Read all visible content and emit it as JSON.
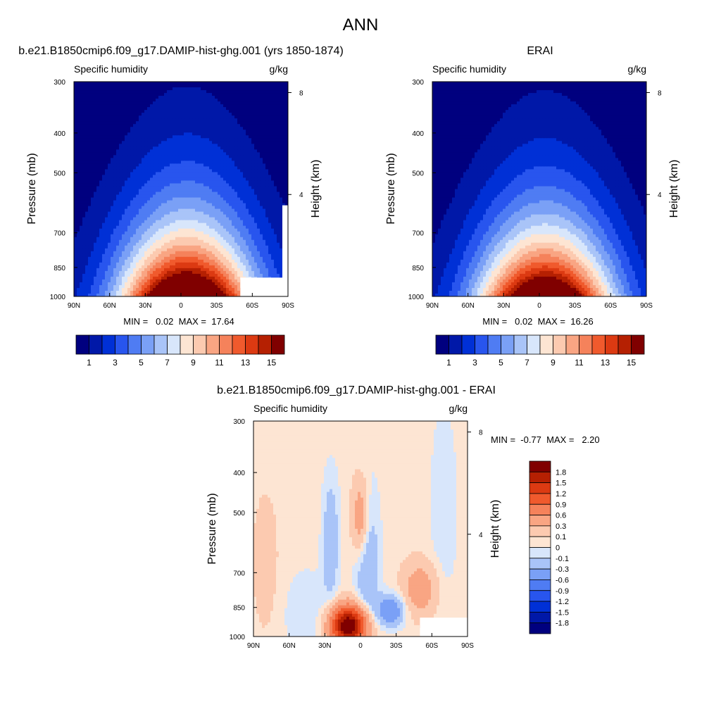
{
  "figure": {
    "title": "ANN"
  },
  "colors": {
    "absolute_scale": [
      "#00007f",
      "#0018a8",
      "#0030d6",
      "#2855ee",
      "#4f7cf3",
      "#7aa0f6",
      "#a9c4f8",
      "#d8e6fb",
      "#fde5d3",
      "#fccab0",
      "#f9a583",
      "#f5825b",
      "#f05a2d",
      "#dc3a12",
      "#b52002",
      "#800000"
    ],
    "difference_scale": [
      "#00007f",
      "#0018a8",
      "#0030d6",
      "#2855ee",
      "#4f7cf3",
      "#7aa0f6",
      "#a9c4f8",
      "#d8e6fb",
      "#fde5d3",
      "#fccab0",
      "#f9a583",
      "#f5825b",
      "#f05a2d",
      "#dc3a12",
      "#b52002",
      "#800000"
    ]
  },
  "chart_data": [
    {
      "type": "heatmap",
      "title": "b.e21.B1850cmip6.f09_g17.DAMIP-hist-ghg.001 (yrs 1850-1874)",
      "left_string": "Specific humidity",
      "right_string": "g/kg",
      "xlabel": "",
      "ylabel": "Pressure (mb)",
      "y2label": "Height (km)",
      "x_ticks": [
        "90N",
        "60N",
        "30N",
        "0",
        "30S",
        "60S",
        "90S"
      ],
      "y_ticks": [
        "300",
        "400",
        "500",
        "700",
        "850",
        "1000"
      ],
      "y2_ticks": [
        "8",
        "4"
      ],
      "ylim": [
        1000,
        300
      ],
      "xlim": [
        90,
        -90
      ],
      "stats": "MIN =   0.02  MAX =  17.64",
      "min": 0.02,
      "max": 17.64,
      "colorbar_labels": [
        "1",
        "3",
        "5",
        "7",
        "9",
        "11",
        "13",
        "15"
      ],
      "core_latitude": -5,
      "levels": [
        1,
        2,
        3,
        4,
        5,
        6,
        7,
        8,
        9,
        10,
        11,
        12,
        13,
        14,
        15,
        16
      ]
    },
    {
      "type": "heatmap",
      "title": "ERAI",
      "left_string": "Specific humidity",
      "right_string": "g/kg",
      "xlabel": "",
      "ylabel": "Pressure (mb)",
      "y2label": "Height (km)",
      "x_ticks": [
        "90N",
        "60N",
        "30N",
        "0",
        "30S",
        "60S",
        "90S"
      ],
      "y_ticks": [
        "300",
        "400",
        "500",
        "700",
        "850",
        "1000"
      ],
      "y2_ticks": [
        "8",
        "4"
      ],
      "ylim": [
        1000,
        300
      ],
      "xlim": [
        90,
        -90
      ],
      "stats": "MIN =   0.02  MAX =  16.26",
      "min": 0.02,
      "max": 16.26,
      "colorbar_labels": [
        "1",
        "3",
        "5",
        "7",
        "9",
        "11",
        "13",
        "15"
      ],
      "core_latitude": -5,
      "levels": [
        1,
        2,
        3,
        4,
        5,
        6,
        7,
        8,
        9,
        10,
        11,
        12,
        13,
        14,
        15,
        16
      ]
    },
    {
      "type": "heatmap",
      "title": "b.e21.B1850cmip6.f09_g17.DAMIP-hist-ghg.001 - ERAI",
      "left_string": "Specific humidity",
      "right_string": "g/kg",
      "xlabel": "",
      "ylabel": "Pressure (mb)",
      "y2label": "Height (km)",
      "x_ticks": [
        "90N",
        "60N",
        "30N",
        "0",
        "30S",
        "60S",
        "90S"
      ],
      "y_ticks": [
        "300",
        "400",
        "500",
        "700",
        "850",
        "1000"
      ],
      "y2_ticks": [
        "8",
        "4"
      ],
      "ylim": [
        1000,
        300
      ],
      "xlim": [
        90,
        -90
      ],
      "stats": "MIN =  -0.77  MAX =   2.20",
      "min": -0.77,
      "max": 2.2,
      "colorbar_labels": [
        "1.8",
        "1.5",
        "1.2",
        "0.9",
        "0.6",
        "0.3",
        "0.1",
        "0",
        "-0.1",
        "-0.3",
        "-0.6",
        "-0.9",
        "-1.2",
        "-1.5",
        "-1.8"
      ],
      "levels": [
        -1.8,
        -1.5,
        -1.2,
        -0.9,
        -0.6,
        -0.3,
        -0.1,
        0,
        0.1,
        0.3,
        0.6,
        0.9,
        1.2,
        1.5,
        1.8
      ]
    }
  ]
}
